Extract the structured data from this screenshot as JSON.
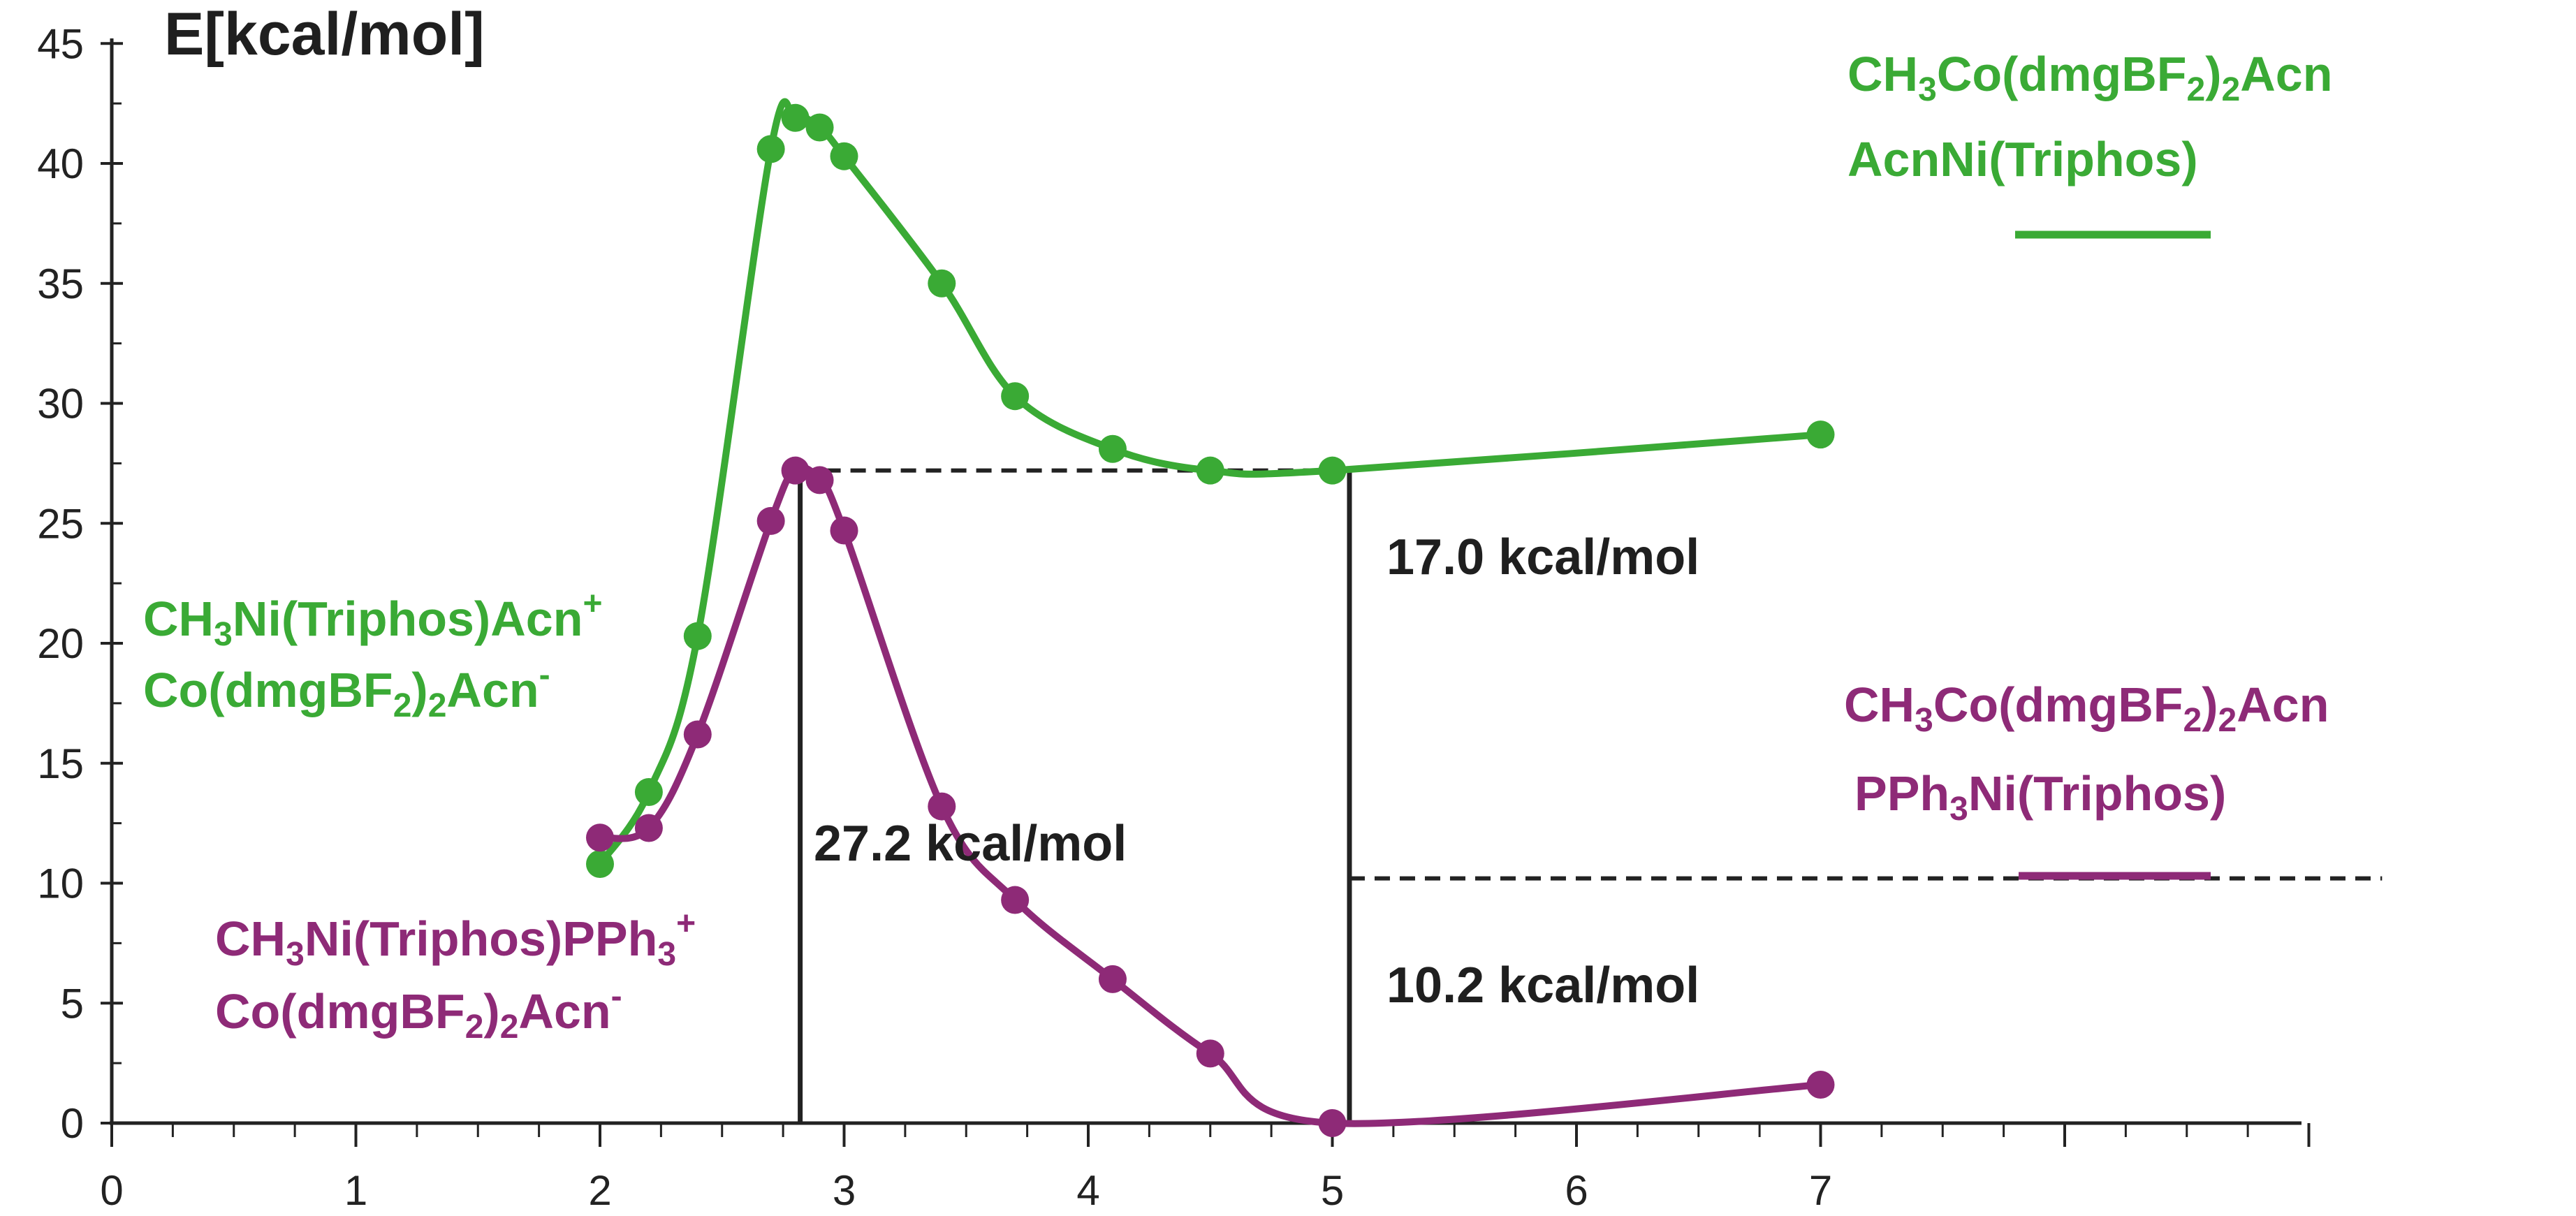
{
  "colors": {
    "green": "#3aaa35",
    "purple": "#8e2a77",
    "axis": "#222222"
  },
  "chart_data": {
    "type": "line",
    "ylabel": "E[kcal/mol]",
    "xlabel": "",
    "xlim": [
      0,
      9
    ],
    "ylim": [
      0,
      45
    ],
    "xticks": [
      "0",
      "1",
      "2",
      "3",
      "4",
      "5",
      "6",
      "7"
    ],
    "yticks": [
      "0",
      "5",
      "10",
      "15",
      "20",
      "25",
      "30",
      "35",
      "40",
      "45"
    ],
    "series": [
      {
        "name": "green",
        "color": "#3aaa35",
        "x": [
          2.0,
          2.2,
          2.4,
          2.7,
          2.8,
          2.9,
          3.0,
          3.4,
          3.7,
          4.1,
          4.5,
          5.0,
          7.0
        ],
        "y": [
          10.8,
          13.8,
          20.3,
          40.6,
          41.9,
          41.5,
          40.3,
          35.0,
          30.3,
          28.1,
          27.2,
          27.2,
          28.7
        ]
      },
      {
        "name": "purple",
        "color": "#8e2a77",
        "x": [
          2.0,
          2.2,
          2.4,
          2.7,
          2.8,
          2.9,
          3.0,
          3.4,
          3.7,
          4.1,
          4.5,
          5.0,
          7.0
        ],
        "y": [
          11.9,
          12.3,
          16.2,
          25.1,
          27.2,
          26.8,
          24.7,
          13.2,
          9.3,
          6.0,
          2.9,
          0.0,
          1.6
        ]
      }
    ],
    "legend": [
      {
        "line1": {
          "a": "CH",
          "s1": "3",
          "b": "Co(dmgBF",
          "s2": "2",
          "c": ")",
          "s3": "2",
          "d": "Acn"
        },
        "line2": "AcnNi(Triphos)",
        "color": "#3aaa35"
      },
      {
        "line1": {
          "a": "CH",
          "s1": "3",
          "b": "Co(dmgBF",
          "s2": "2",
          "c": ")",
          "s3": "2",
          "d": "Acn"
        },
        "line2": {
          "a": "PPh",
          "s1": "3",
          "b": "Ni(Triphos)"
        },
        "color": "#8e2a77"
      }
    ],
    "curve_labels": [
      {
        "line1": {
          "a": "CH",
          "s1": "3",
          "b": "Ni(Triphos)Acn",
          "sup": "+"
        },
        "line2": {
          "a": "Co(dmgBF",
          "s1": "2",
          "b": ")",
          "s2": "2",
          "c": "Acn",
          "sup": "-"
        },
        "color": "#3aaa35"
      },
      {
        "line1": {
          "a": "CH",
          "s1": "3",
          "b": "Ni(Triphos)PPh",
          "s2": "3",
          "sup": "+"
        },
        "line2": {
          "a": "Co(dmgBF",
          "s1": "2",
          "b": ")",
          "s2": "2",
          "c": "Acn",
          "sup": "-"
        },
        "color": "#8e2a77"
      }
    ],
    "annotations": {
      "barrier": {
        "text": "27.2 kcal/mol",
        "x": 2.82,
        "y0": 0,
        "y1": 27.2
      },
      "gap": {
        "text": "17.0 kcal/mol",
        "x": 5.07,
        "y": 27.2,
        "x_from": 2.82
      },
      "reaction": {
        "text": "10.2 kcal/mol",
        "x": 5.07,
        "y": 10.2,
        "x_to": 9.3
      }
    }
  }
}
